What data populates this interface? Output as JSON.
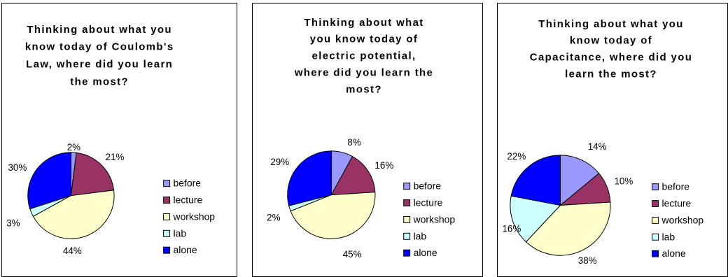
{
  "palette": {
    "before": "#9999ff",
    "lecture": "#993366",
    "workshop": "#ffffcc",
    "lab": "#ccffff",
    "alone": "#0000ff",
    "outline": "#000000",
    "background": "#ffffff"
  },
  "chart_data": [
    {
      "type": "pie",
      "title_lines": [
        "Thinking about what you",
        "know today of Coulomb's",
        "Law, where did you learn",
        "the most?"
      ],
      "categories": [
        "before",
        "lecture",
        "workshop",
        "lab",
        "alone"
      ],
      "values": [
        2,
        21,
        44,
        3,
        30
      ],
      "labels": [
        "2%",
        "21%",
        "44%",
        "3%",
        "30%"
      ],
      "legend_position": "right",
      "legend": [
        "before",
        "lecture",
        "workshop",
        "lab",
        "alone"
      ]
    },
    {
      "type": "pie",
      "title_lines": [
        "Thinking about what",
        "you know today of",
        "electric potential,",
        "where did you learn the",
        "most?"
      ],
      "categories": [
        "before",
        "lecture",
        "workshop",
        "lab",
        "alone"
      ],
      "values": [
        8,
        16,
        45,
        2,
        29
      ],
      "labels": [
        "8%",
        "16%",
        "45%",
        "2%",
        "29%"
      ],
      "legend_position": "right",
      "legend": [
        "before",
        "lecture",
        "workshop",
        "lab",
        "alone"
      ]
    },
    {
      "type": "pie",
      "title_lines": [
        "Thinking about what you",
        "know today of",
        "Capacitance, where did you",
        "learn the most?"
      ],
      "categories": [
        "before",
        "lecture",
        "workshop",
        "lab",
        "alone"
      ],
      "values": [
        14,
        10,
        38,
        16,
        22
      ],
      "labels": [
        "14%",
        "10%",
        "38%",
        "16%",
        "22%"
      ],
      "legend_position": "right",
      "legend": [
        "before",
        "lecture",
        "workshop",
        "lab",
        "alone"
      ]
    }
  ]
}
